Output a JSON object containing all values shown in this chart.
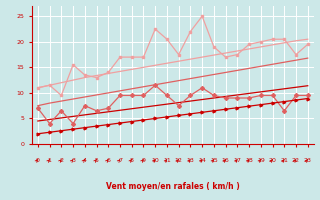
{
  "x": [
    0,
    1,
    2,
    3,
    4,
    5,
    6,
    7,
    8,
    9,
    10,
    11,
    12,
    13,
    14,
    15,
    16,
    17,
    18,
    19,
    20,
    21,
    22,
    23
  ],
  "line1_jagged": [
    11.0,
    11.5,
    9.5,
    15.5,
    13.5,
    13.0,
    14.0,
    17.0,
    17.0,
    17.0,
    22.5,
    20.5,
    17.5,
    22.0,
    25.0,
    19.0,
    17.0,
    17.5,
    19.5,
    20.0,
    20.5,
    20.5,
    17.5,
    19.5
  ],
  "line2_slope_top": [
    11.0,
    11.5,
    12.0,
    12.5,
    13.0,
    13.4,
    13.8,
    14.2,
    14.6,
    15.0,
    15.4,
    15.8,
    16.2,
    16.6,
    17.0,
    17.4,
    17.8,
    18.2,
    18.6,
    19.0,
    19.4,
    19.8,
    20.2,
    20.5
  ],
  "line3_slope_mid_top": [
    7.5,
    8.0,
    8.4,
    8.8,
    9.2,
    9.6,
    10.0,
    10.4,
    10.8,
    11.2,
    11.6,
    12.0,
    12.4,
    12.8,
    13.2,
    13.6,
    14.0,
    14.4,
    14.8,
    15.2,
    15.6,
    16.0,
    16.4,
    16.8
  ],
  "line4_jagged_mid": [
    7.0,
    4.0,
    6.5,
    4.0,
    7.5,
    6.5,
    7.0,
    9.5,
    9.5,
    9.5,
    11.5,
    9.5,
    7.5,
    9.5,
    11.0,
    9.5,
    9.0,
    9.0,
    9.0,
    9.5,
    9.5,
    6.5,
    9.5,
    9.5
  ],
  "line5_slope_mid_bot": [
    4.5,
    4.8,
    5.1,
    5.4,
    5.7,
    6.0,
    6.3,
    6.6,
    6.9,
    7.2,
    7.5,
    7.8,
    8.1,
    8.4,
    8.7,
    9.0,
    9.3,
    9.6,
    9.9,
    10.2,
    10.5,
    10.8,
    11.1,
    11.4
  ],
  "line6_slope_bot": [
    2.0,
    2.3,
    2.6,
    2.9,
    3.2,
    3.5,
    3.8,
    4.1,
    4.4,
    4.7,
    5.0,
    5.3,
    5.6,
    5.9,
    6.2,
    6.5,
    6.8,
    7.1,
    7.4,
    7.7,
    8.0,
    8.3,
    8.6,
    8.9
  ],
  "xlabel": "Vent moyen/en rafales ( km/h )",
  "ylim": [
    0,
    27
  ],
  "xlim": [
    -0.5,
    23.5
  ],
  "yticks": [
    0,
    5,
    10,
    15,
    20,
    25
  ],
  "xticks": [
    0,
    1,
    2,
    3,
    4,
    5,
    6,
    7,
    8,
    9,
    10,
    11,
    12,
    13,
    14,
    15,
    16,
    17,
    18,
    19,
    20,
    21,
    22,
    23
  ],
  "bg_color": "#cce8e8",
  "grid_color": "#ffffff",
  "light_red": "#f0a0a0",
  "med_red": "#e06060",
  "dark_red": "#cc0000"
}
